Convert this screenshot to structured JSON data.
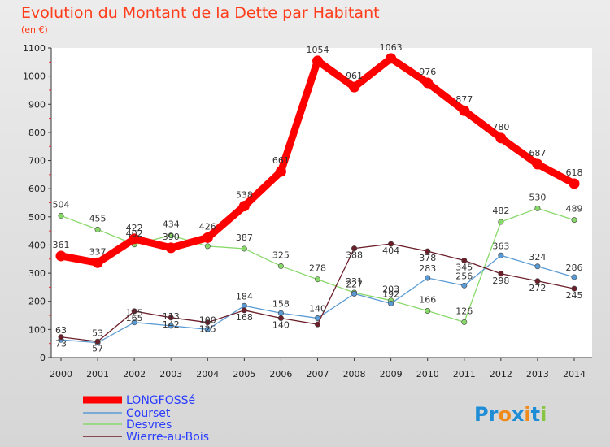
{
  "chart_data": {
    "type": "line",
    "title": "Evolution du Montant de la Dette par Habitant",
    "subtitle": "(en €)",
    "x": [
      "2000",
      "2001",
      "2002",
      "2003",
      "2004",
      "2005",
      "2006",
      "2007",
      "2008",
      "2009",
      "2010",
      "2011",
      "2012",
      "2013",
      "2014"
    ],
    "ylim": [
      0,
      1100
    ],
    "yticks": [
      0,
      100,
      200,
      300,
      400,
      500,
      600,
      700,
      800,
      900,
      1000,
      1100
    ],
    "grid": false,
    "legend": "bottom-left",
    "series": [
      {
        "name": "LONGFOSSé",
        "color": "#ff0000",
        "values": [
          361,
          337,
          422,
          390,
          426,
          538,
          661,
          1054,
          961,
          1063,
          976,
          877,
          780,
          687,
          618
        ]
      },
      {
        "name": "Courset",
        "color": "#5a9bd5",
        "values": [
          63,
          53,
          125,
          113,
          100,
          184,
          158,
          140,
          227,
          192,
          283,
          256,
          363,
          324,
          286
        ]
      },
      {
        "name": "Desvres",
        "color": "#88d96a",
        "values": [
          504,
          455,
          402,
          434,
          396,
          387,
          325,
          278,
          231,
          203,
          166,
          126,
          482,
          530,
          489
        ]
      },
      {
        "name": "Wierre-au-Bois",
        "color": "#6b1f2a",
        "values": [
          73,
          57,
          165,
          142,
          125,
          168,
          140,
          118,
          388,
          404,
          378,
          345,
          298,
          272,
          245
        ]
      }
    ],
    "labels_shown": [
      [
        "361",
        "337",
        "422",
        "390",
        "426",
        "538",
        "661",
        "1054",
        "961",
        "1063",
        "976",
        "877",
        "780",
        "687",
        "618"
      ],
      [
        "63",
        "53",
        "125",
        "113",
        "100",
        "184",
        "158",
        "140",
        "227",
        "192",
        "283",
        "256",
        "363",
        "324",
        "286"
      ],
      [
        "504",
        "455",
        "402",
        "434",
        "",
        "387",
        "325",
        "278",
        "231",
        "203",
        "166",
        "126",
        "482",
        "530",
        "489"
      ],
      [
        "73",
        "57",
        "165",
        "142",
        "125",
        "168",
        "140",
        "",
        "388",
        "404",
        "378",
        "345",
        "298",
        "272",
        "245"
      ]
    ]
  },
  "logo": {
    "text": "Proxiti"
  }
}
